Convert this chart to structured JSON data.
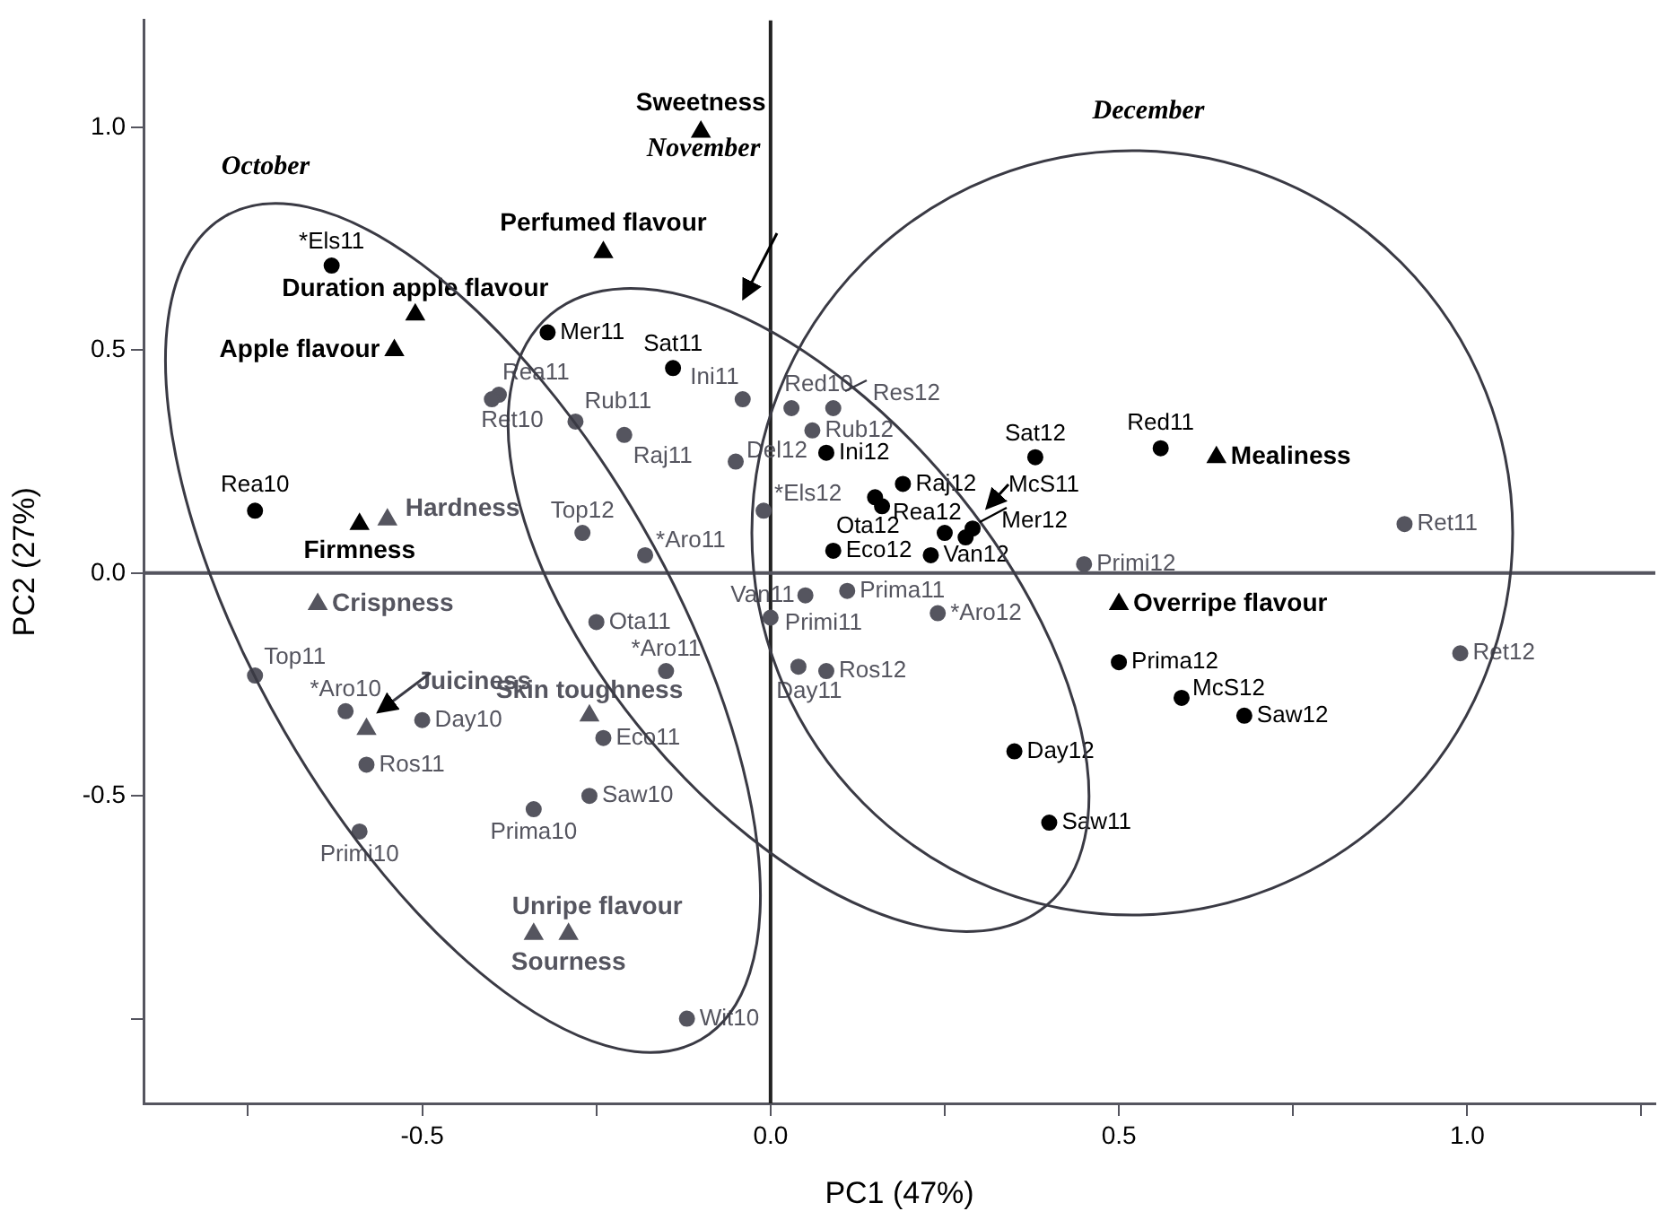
{
  "chart_data": {
    "type": "scatter",
    "xlabel": "PC1 (47%)",
    "ylabel": "PC2 (27%)",
    "xlim": [
      -0.9,
      1.27
    ],
    "ylim": [
      -1.19,
      1.24
    ],
    "xticks": [
      {
        "value": -0.75,
        "label": null
      },
      {
        "value": -0.5,
        "label": "-0.5"
      },
      {
        "value": -0.25,
        "label": null
      },
      {
        "value": 0,
        "label": "0.0"
      },
      {
        "value": 0.25,
        "label": null
      },
      {
        "value": 0.5,
        "label": "0.5"
      },
      {
        "value": 0.75,
        "label": null
      },
      {
        "value": 1,
        "label": "1.0"
      },
      {
        "value": 1.25,
        "label": null
      }
    ],
    "yticks": [
      {
        "value": -1,
        "label": null
      },
      {
        "value": -0.5,
        "label": "-0.5"
      },
      {
        "value": 0,
        "label": "0.0"
      },
      {
        "value": 0.5,
        "label": "0.5"
      },
      {
        "value": 1,
        "label": "1.0"
      }
    ],
    "grid": false,
    "legend": false,
    "marker": "circle",
    "ref_lines": [
      {
        "axis": "x",
        "value": 0,
        "color": "#222222"
      },
      {
        "axis": "y",
        "value": 0,
        "color": "#55555f"
      }
    ],
    "series": [
      {
        "color": "#000000",
        "marker": "triangle",
        "x": [
          -0.1,
          -0.24,
          -0.51,
          -0.54,
          -0.59,
          0.64,
          0.5
        ],
        "values": [
          0.99,
          0.72,
          0.58,
          0.5,
          0.11,
          0.26,
          -0.07
        ]
      },
      {
        "color": "#55555f",
        "marker": "triangle",
        "x": [
          -0.55,
          -0.65,
          -0.58,
          -0.26,
          -0.34,
          -0.29
        ],
        "values": [
          0.12,
          -0.07,
          -0.35,
          -0.32,
          -0.81,
          -0.81
        ]
      },
      {
        "color": "#000000",
        "x": [
          -0.63,
          -0.32,
          -0.14,
          -0.74,
          0.08,
          0.19,
          0.15,
          0.16,
          0.09,
          0.23,
          0.28,
          0.29,
          0.25,
          0.38,
          0.56,
          0.5,
          0.59,
          0.68,
          0.35,
          0.4
        ],
        "values": [
          0.69,
          0.54,
          0.46,
          0.14,
          0.27,
          0.2,
          0.17,
          0.15,
          0.05,
          0.04,
          0.08,
          0.1,
          0.09,
          0.26,
          0.28,
          -0.2,
          -0.28,
          -0.32,
          -0.4,
          -0.56
        ]
      },
      {
        "color": "#55555f",
        "x": [
          -0.04,
          -0.39,
          -0.4,
          -0.28,
          -0.21,
          -0.05,
          -0.01,
          -0.27,
          -0.18,
          0.03,
          0.06,
          0.09,
          0.91,
          0.45,
          0.11,
          0.05,
          0.0,
          0.24,
          0.04,
          0.08,
          0.99,
          -0.25,
          -0.15,
          -0.74,
          -0.61,
          -0.5,
          -0.24,
          -0.58,
          -0.26,
          -0.34,
          -0.59,
          -0.12
        ],
        "values": [
          0.39,
          0.4,
          0.39,
          0.34,
          0.31,
          0.25,
          0.14,
          0.09,
          0.04,
          0.37,
          0.32,
          0.37,
          0.11,
          0.02,
          -0.04,
          -0.05,
          -0.1,
          -0.09,
          -0.21,
          -0.22,
          -0.18,
          -0.11,
          -0.22,
          -0.23,
          -0.31,
          -0.33,
          -0.37,
          -0.43,
          -0.5,
          -0.53,
          -0.58,
          -1.0
        ]
      }
    ],
    "annotations": [
      "October",
      "November",
      "December",
      {
        "text": "Sweetness",
        "x": -0.1,
        "y": 0.99
      },
      {
        "text": "Perfumed flavour",
        "x": -0.24,
        "y": 0.72
      },
      {
        "text": "Duration apple flavour",
        "x": -0.51,
        "y": 0.58
      },
      {
        "text": "Apple flavour",
        "x": -0.54,
        "y": 0.5
      },
      {
        "text": "Firmness",
        "x": -0.59,
        "y": 0.11
      },
      {
        "text": "Mealiness",
        "x": 0.64,
        "y": 0.26
      },
      {
        "text": "Overripe flavour",
        "x": 0.5,
        "y": -0.07
      },
      {
        "text": "Hardness",
        "x": -0.55,
        "y": 0.12
      },
      {
        "text": "Crispness",
        "x": -0.65,
        "y": -0.07
      },
      {
        "text": "Juiciness",
        "x": -0.58,
        "y": -0.35
      },
      {
        "text": "Skin toughness",
        "x": -0.26,
        "y": -0.32
      },
      {
        "text": "Unripe flavour",
        "x": -0.34,
        "y": -0.81
      },
      {
        "text": "Sourness",
        "x": -0.29,
        "y": -0.81
      },
      {
        "text": "*Els11",
        "x": -0.63,
        "y": 0.69
      },
      {
        "text": "Mer11",
        "x": -0.32,
        "y": 0.54
      },
      {
        "text": "Sat11",
        "x": -0.14,
        "y": 0.46
      },
      {
        "text": "Rea10",
        "x": -0.74,
        "y": 0.14
      },
      {
        "text": "Ini12",
        "x": 0.08,
        "y": 0.27
      },
      {
        "text": "Raj12",
        "x": 0.19,
        "y": 0.2
      },
      {
        "text": "Ota12",
        "x": 0.15,
        "y": 0.17
      },
      {
        "text": "Rea12",
        "x": 0.16,
        "y": 0.15
      },
      {
        "text": "Eco12",
        "x": 0.09,
        "y": 0.05
      },
      {
        "text": "Van12",
        "x": 0.23,
        "y": 0.04
      },
      {
        "text": "Mer12",
        "x": 0.28,
        "y": 0.08
      },
      {
        "text": "McS11",
        "x": 0.29,
        "y": 0.1
      },
      {
        "text": "Sat12",
        "x": 0.38,
        "y": 0.26
      },
      {
        "text": "Red11",
        "x": 0.56,
        "y": 0.28
      },
      {
        "text": "Prima12",
        "x": 0.5,
        "y": -0.2
      },
      {
        "text": "McS12",
        "x": 0.59,
        "y": -0.28
      },
      {
        "text": "Saw12",
        "x": 0.68,
        "y": -0.32
      },
      {
        "text": "Day12",
        "x": 0.35,
        "y": -0.4
      },
      {
        "text": "Saw11",
        "x": 0.4,
        "y": -0.56
      },
      {
        "text": "Ini11",
        "x": -0.04,
        "y": 0.39
      },
      {
        "text": "Rea11",
        "x": -0.39,
        "y": 0.4
      },
      {
        "text": "Ret10",
        "x": -0.4,
        "y": 0.39
      },
      {
        "text": "Rub11",
        "x": -0.28,
        "y": 0.34
      },
      {
        "text": "Raj11",
        "x": -0.21,
        "y": 0.31
      },
      {
        "text": "Del12",
        "x": -0.05,
        "y": 0.25
      },
      {
        "text": "*Els12",
        "x": -0.01,
        "y": 0.14
      },
      {
        "text": "Top12",
        "x": -0.27,
        "y": 0.09
      },
      {
        "text": "*Aro11",
        "x": -0.18,
        "y": 0.04
      },
      {
        "text": "Red10",
        "x": 0.03,
        "y": 0.37
      },
      {
        "text": "Rub12",
        "x": 0.06,
        "y": 0.32
      },
      {
        "text": "Res12",
        "x": 0.09,
        "y": 0.37
      },
      {
        "text": "Ret11",
        "x": 0.91,
        "y": 0.11
      },
      {
        "text": "Primi12",
        "x": 0.45,
        "y": 0.02
      },
      {
        "text": "Prima11",
        "x": 0.11,
        "y": -0.04
      },
      {
        "text": "Van11",
        "x": 0.05,
        "y": -0.05
      },
      {
        "text": "Primi11",
        "x": 0.0,
        "y": -0.1
      },
      {
        "text": "*Aro12",
        "x": 0.24,
        "y": -0.09
      },
      {
        "text": "Day11",
        "x": 0.04,
        "y": -0.21
      },
      {
        "text": "Ros12",
        "x": 0.08,
        "y": -0.22
      },
      {
        "text": "Ret12",
        "x": 0.99,
        "y": -0.18
      },
      {
        "text": "Ota11",
        "x": -0.25,
        "y": -0.11
      },
      {
        "text": "*Aro11",
        "x": -0.15,
        "y": -0.22
      },
      {
        "text": "Top11",
        "x": -0.74,
        "y": -0.23
      },
      {
        "text": "*Aro10",
        "x": -0.61,
        "y": -0.31
      },
      {
        "text": "Day10",
        "x": -0.5,
        "y": -0.33
      },
      {
        "text": "Eco11",
        "x": -0.24,
        "y": -0.37
      },
      {
        "text": "Ros11",
        "x": -0.58,
        "y": -0.43
      },
      {
        "text": "Saw10",
        "x": -0.26,
        "y": -0.5
      },
      {
        "text": "Prima10",
        "x": -0.34,
        "y": -0.53
      },
      {
        "text": "Primi10",
        "x": -0.59,
        "y": -0.58
      },
      {
        "text": "Wit10",
        "x": -0.12,
        "y": -1.0
      }
    ]
  }
}
